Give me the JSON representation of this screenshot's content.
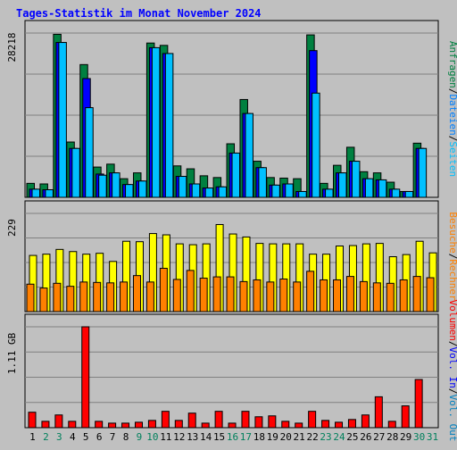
{
  "title": "Tages-Statistik im Monat November 2024",
  "colors": {
    "background": "#c0c0c0",
    "plot": "#c0c0c0",
    "grid": "#808080",
    "title": "#0000ff",
    "hits": "#008040",
    "files": "#00c0ff",
    "pages": "#0000ff",
    "visits": "#ffff00",
    "sites": "#ff8000",
    "kbytes": "#ff0000",
    "weekend": "#00805c",
    "weekday": "#000000"
  },
  "legends": {
    "top": [
      {
        "text": "Anfragen",
        "color": "#008040"
      },
      {
        "text": "/",
        "color": "#000000"
      },
      {
        "text": "Dateien",
        "color": "#0080ff"
      },
      {
        "text": "/",
        "color": "#000000"
      },
      {
        "text": "Seiten",
        "color": "#00c0ff"
      }
    ],
    "middle": [
      {
        "text": "Besuche",
        "color": "#ff8000"
      },
      {
        "text": "/",
        "color": "#000000"
      },
      {
        "text": "Rechner",
        "color": "#ff8000"
      }
    ],
    "bottom": [
      {
        "text": "Volumen",
        "color": "#ff0000"
      },
      {
        "text": "/",
        "color": "#000000"
      },
      {
        "text": "Vol. In",
        "color": "#0000ff"
      },
      {
        "text": "/",
        "color": "#000000"
      },
      {
        "text": "Vol. Out",
        "color": "#0080c0"
      }
    ]
  },
  "chart_data": [
    {
      "type": "bar",
      "panel": "top",
      "ymax_label": "28218",
      "ymax": 28218,
      "categories": [
        "1",
        "2",
        "3",
        "4",
        "5",
        "6",
        "7",
        "8",
        "9",
        "10",
        "11",
        "12",
        "13",
        "14",
        "15",
        "16",
        "17",
        "18",
        "19",
        "20",
        "21",
        "22",
        "23",
        "24",
        "25",
        "26",
        "27",
        "28",
        "29",
        "30",
        "31"
      ],
      "weekend_days": [
        2,
        3,
        9,
        10,
        16,
        17,
        23,
        24,
        30,
        31
      ],
      "series": [
        {
          "name": "Anfragen",
          "values": [
            2400,
            2300,
            28000,
            9500,
            22800,
            5200,
            5700,
            3200,
            4200,
            26500,
            26100,
            5400,
            4900,
            3700,
            3400,
            9200,
            16800,
            6200,
            3400,
            3300,
            3200,
            27900,
            2400,
            5500,
            8600,
            4400,
            4200,
            2600,
            1000,
            9300,
            0
          ]
        },
        {
          "name": "Dateien",
          "values": [
            1400,
            1300,
            26600,
            8400,
            20400,
            4000,
            4200,
            2200,
            2800,
            25700,
            24700,
            3600,
            2300,
            1600,
            1800,
            7600,
            14400,
            5100,
            2100,
            2300,
            1000,
            25200,
            1400,
            4200,
            6200,
            3200,
            3000,
            1400,
            1000,
            8400,
            0
          ]
        },
        {
          "name": "Seiten",
          "values": [
            1400,
            1300,
            26600,
            8400,
            15400,
            3800,
            4200,
            2200,
            2800,
            25700,
            24700,
            3600,
            2300,
            1600,
            1800,
            7600,
            14400,
            5100,
            2100,
            2300,
            1000,
            17900,
            1400,
            4200,
            6200,
            3200,
            3000,
            1400,
            1000,
            8400,
            0
          ]
        }
      ]
    },
    {
      "type": "bar",
      "panel": "middle",
      "ymax_label": "229",
      "ymax": 229,
      "categories": [
        "1",
        "2",
        "3",
        "4",
        "5",
        "6",
        "7",
        "8",
        "9",
        "10",
        "11",
        "12",
        "13",
        "14",
        "15",
        "16",
        "17",
        "18",
        "19",
        "20",
        "21",
        "22",
        "23",
        "24",
        "25",
        "26",
        "27",
        "28",
        "29",
        "30",
        "31"
      ],
      "series": [
        {
          "name": "Besuche",
          "values": [
            131,
            134,
            145,
            140,
            134,
            136,
            117,
            164,
            163,
            182,
            179,
            158,
            156,
            158,
            203,
            181,
            174,
            159,
            158,
            158,
            158,
            134,
            134,
            153,
            154,
            158,
            159,
            128,
            133,
            164,
            137
          ]
        },
        {
          "name": "Rechner",
          "values": [
            64,
            55,
            66,
            59,
            69,
            68,
            67,
            69,
            84,
            69,
            101,
            75,
            96,
            78,
            81,
            81,
            70,
            74,
            69,
            76,
            69,
            94,
            74,
            74,
            82,
            70,
            67,
            66,
            74,
            82,
            79
          ]
        }
      ]
    },
    {
      "type": "bar",
      "panel": "bottom",
      "ymax_label": "1.11 GB",
      "ymax": 1.11,
      "unit": "GB",
      "categories": [
        "1",
        "2",
        "3",
        "4",
        "5",
        "6",
        "7",
        "8",
        "9",
        "10",
        "11",
        "12",
        "13",
        "14",
        "15",
        "16",
        "17",
        "18",
        "19",
        "20",
        "21",
        "22",
        "23",
        "24",
        "25",
        "26",
        "27",
        "28",
        "29",
        "30",
        "31"
      ],
      "series": [
        {
          "name": "Volumen",
          "values": [
            0.17,
            0.07,
            0.14,
            0.07,
            1.11,
            0.07,
            0.05,
            0.05,
            0.06,
            0.08,
            0.18,
            0.08,
            0.16,
            0.05,
            0.18,
            0.05,
            0.18,
            0.12,
            0.13,
            0.07,
            0.05,
            0.18,
            0.08,
            0.06,
            0.09,
            0.14,
            0.34,
            0.07,
            0.24,
            0.53,
            0
          ]
        }
      ]
    }
  ]
}
